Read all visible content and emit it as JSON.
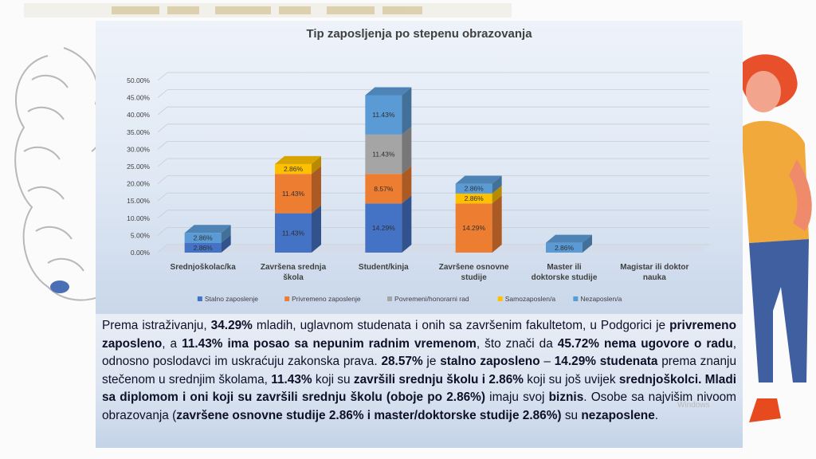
{
  "chart_data": {
    "type": "bar",
    "stacked": true,
    "title": "Tip zaposljenja po stepenu obrazovanja",
    "categories": [
      "Srednjoškolac/ka",
      "Završena srednja škola",
      "Student/kinja",
      "Završene osnovne studije",
      "Master ili doktorske studije",
      "Magistar ili doktor nauka"
    ],
    "series": [
      {
        "name": "Stalno zaposlenje",
        "color": "#4472c4",
        "values": [
          2.86,
          11.43,
          14.29,
          0,
          0,
          0
        ]
      },
      {
        "name": "Privremeno zaposlenje",
        "color": "#ed7d31",
        "values": [
          0,
          11.43,
          8.57,
          14.29,
          0,
          0
        ]
      },
      {
        "name": "Povremeni/honorarni rad",
        "color": "#a5a5a5",
        "values": [
          0,
          0,
          11.43,
          0,
          0,
          0
        ]
      },
      {
        "name": "Samozaposlen/a",
        "color": "#ffc000",
        "values": [
          0,
          2.86,
          0,
          2.86,
          0,
          0
        ]
      },
      {
        "name": "Nezaposlen/a",
        "color": "#5b9bd5",
        "values": [
          2.86,
          0,
          11.43,
          2.86,
          2.86,
          0
        ]
      }
    ],
    "yticks": [
      "0.00%",
      "5.00%",
      "10.00%",
      "15.00%",
      "20.00%",
      "25.00%",
      "30.00%",
      "35.00%",
      "40.00%",
      "45.00%",
      "50.00%"
    ],
    "ylim": [
      0,
      50
    ],
    "legend_position": "bottom",
    "grid": true
  },
  "summary": {
    "p1": "Prema istraživanju, ",
    "b1": "34.29%",
    "p2": " mladih, uglavnom studenata i onih sa završenim fakultetom, u Podgorici je ",
    "b2": "privremeno zaposleno",
    "p3": ", a ",
    "b3": "11.43% ima posao sa nepunim radnim vremenom",
    "p4": ", što znači da ",
    "b4": "45.72% nema ugovore o radu",
    "p5": ", odnosno poslodavci im uskraćuju zakonska prava. ",
    "b5": "28.57%",
    "p6": " je ",
    "b6": "stalno zaposleno",
    "p7": " – ",
    "b7": "14.29% studenata",
    "p8": " prema znanju stečenom u srednjim školama, ",
    "b8": "11.43%",
    "p9": " koji su ",
    "b9": "završili srednju školu i 2.86%",
    "p10": " koji su još uvijek ",
    "b10": "srednjoškolci. Mladi sa diplomom i oni koji su završili srednju školu (oboje po 2.86%)",
    "p11": " imaju svoj ",
    "b11": "biznis",
    "p12": ". Osobe sa najvišim nivoom obrazovanja (",
    "b12": "završene osnovne studije 2.86% i master/doktorske studije 2.86%)",
    "p13": " su ",
    "b13": "nezaposlene",
    "p14": "."
  },
  "watermark": "Windows",
  "colors": {
    "text": "#0d1026",
    "title": "#404040"
  }
}
